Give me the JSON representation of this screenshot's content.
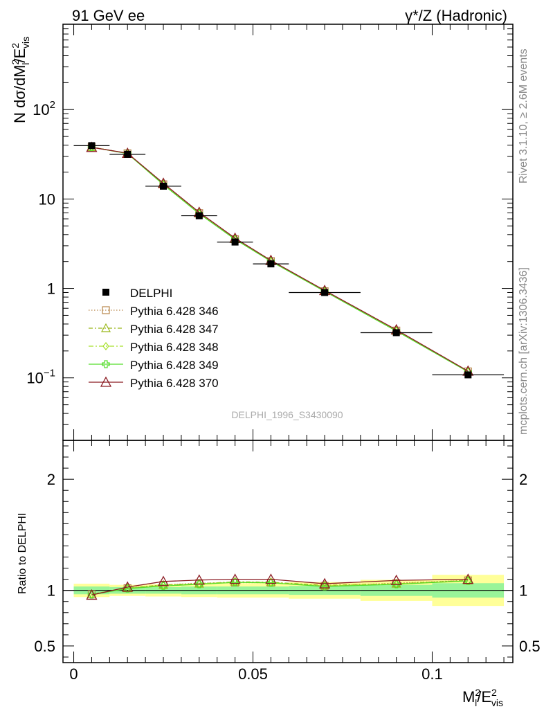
{
  "header": {
    "left": "91 GeV ee",
    "right": "γ*/Z (Hadronic)"
  },
  "side": {
    "rivet": "Rivet 3.1.10, ≥ 2.6M events",
    "mcplots": "mcplots.cern.ch [arXiv:1306.3436]"
  },
  "analysis_id": "DELPHI_1996_S3430090",
  "colors": {
    "data": "#000000",
    "p346": "#b8864a",
    "p347": "#9ab81a",
    "p348": "#a6e02a",
    "p349": "#55dd2a",
    "p370": "#8b1a22",
    "band_inner": "#99f499",
    "band_outer": "#ffff99"
  },
  "chart_data": [
    {
      "type": "scatter",
      "panel": "main",
      "ylabel": "N dσ/dM_l^2/E_vis^2",
      "yscale": "log",
      "ylim": [
        0.02,
        900
      ],
      "xlim": [
        -0.003,
        0.1225
      ],
      "yticks": [
        {
          "v": 0.1,
          "label": "10",
          "sup": "−1"
        },
        {
          "v": 1,
          "label": "1",
          "sup": ""
        },
        {
          "v": 10,
          "label": "10",
          "sup": ""
        },
        {
          "v": 100,
          "label": "10",
          "sup": "2"
        }
      ],
      "x": [
        0.005,
        0.015,
        0.025,
        0.035,
        0.045,
        0.055,
        0.07,
        0.09,
        0.11
      ],
      "xerr": [
        0.005,
        0.005,
        0.005,
        0.005,
        0.005,
        0.005,
        0.01,
        0.01,
        0.01
      ],
      "series": [
        {
          "name": "DELPHI",
          "key": "data",
          "marker": "square",
          "values": [
            39.5,
            31.6,
            13.9,
            6.5,
            3.3,
            1.88,
            0.9,
            0.32,
            0.108
          ]
        },
        {
          "name": "Pythia 6.428 346",
          "key": "p346",
          "marker": "open-square",
          "dash": "1.5,2.5",
          "values": [
            38.2,
            32.4,
            14.6,
            6.95,
            3.55,
            2.02,
            0.93,
            0.338,
            0.118
          ]
        },
        {
          "name": "Pythia 6.428 347",
          "key": "p347",
          "marker": "open-triangle",
          "dash": "6,3,2,3",
          "values": [
            38.1,
            32.3,
            14.6,
            6.9,
            3.56,
            2.02,
            0.935,
            0.336,
            0.118
          ]
        },
        {
          "name": "Pythia 6.428 348",
          "key": "p348",
          "marker": "open-diamond",
          "dash": "7,3,2,3",
          "values": [
            38.0,
            32.2,
            14.5,
            6.88,
            3.55,
            2.01,
            0.93,
            0.335,
            0.117
          ]
        },
        {
          "name": "Pythia 6.428 349",
          "key": "p349",
          "marker": "cross",
          "dash": "",
          "values": [
            37.9,
            32.2,
            14.5,
            6.85,
            3.54,
            2.01,
            0.928,
            0.334,
            0.117
          ]
        },
        {
          "name": "Pythia 6.428 370",
          "key": "p370",
          "marker": "open-triangle-big",
          "dash": "",
          "values": [
            37.8,
            32.5,
            15.0,
            7.1,
            3.65,
            2.06,
            0.95,
            0.345,
            0.119
          ]
        }
      ]
    },
    {
      "type": "line",
      "panel": "ratio",
      "ylabel": "Ratio to DELPHI",
      "xlabel": "M_l^2/E_vis^2",
      "ylim": [
        0.35,
        2.35
      ],
      "yticks": [
        0.5,
        1,
        2
      ],
      "xticks": [
        {
          "v": 0,
          "label": "0"
        },
        {
          "v": 0.05,
          "label": "0.05"
        },
        {
          "v": 0.1,
          "label": "0.1"
        }
      ],
      "band_outer": [
        [
          0.06,
          0.06
        ],
        [
          0.05,
          0.05
        ],
        [
          0.055,
          0.055
        ],
        [
          0.06,
          0.06
        ],
        [
          0.065,
          0.065
        ],
        [
          0.065,
          0.065
        ],
        [
          0.075,
          0.075
        ],
        [
          0.095,
          0.095
        ],
        [
          0.14,
          0.14
        ]
      ],
      "band_inner": [
        [
          0.035,
          0.035
        ],
        [
          0.03,
          0.03
        ],
        [
          0.03,
          0.03
        ],
        [
          0.035,
          0.035
        ],
        [
          0.035,
          0.035
        ],
        [
          0.035,
          0.035
        ],
        [
          0.04,
          0.04
        ],
        [
          0.05,
          0.05
        ],
        [
          0.065,
          0.065
        ]
      ],
      "series": [
        {
          "name": "Pythia 6.428 346",
          "key": "p346",
          "marker": "open-square",
          "dash": "1.5,2.5",
          "values": [
            0.966,
            1.02,
            1.05,
            1.065,
            1.07,
            1.07,
            1.04,
            1.065,
            1.09
          ]
        },
        {
          "name": "Pythia 6.428 347",
          "key": "p347",
          "marker": "open-triangle",
          "dash": "6,3,2,3",
          "values": [
            0.966,
            1.02,
            1.05,
            1.06,
            1.078,
            1.074,
            1.045,
            1.06,
            1.09
          ]
        },
        {
          "name": "Pythia 6.428 348",
          "key": "p348",
          "marker": "open-diamond",
          "dash": "7,3,2,3",
          "values": [
            0.964,
            1.018,
            1.045,
            1.058,
            1.076,
            1.07,
            1.04,
            1.058,
            1.085
          ]
        },
        {
          "name": "Pythia 6.428 349",
          "key": "p349",
          "marker": "cross",
          "dash": "",
          "values": [
            0.962,
            1.016,
            1.04,
            1.055,
            1.072,
            1.068,
            1.035,
            1.055,
            1.085
          ]
        },
        {
          "name": "Pythia 6.428 370",
          "key": "p370",
          "marker": "open-triangle-big",
          "dash": "",
          "values": [
            0.958,
            1.03,
            1.08,
            1.093,
            1.1,
            1.1,
            1.06,
            1.09,
            1.1
          ]
        }
      ]
    }
  ]
}
